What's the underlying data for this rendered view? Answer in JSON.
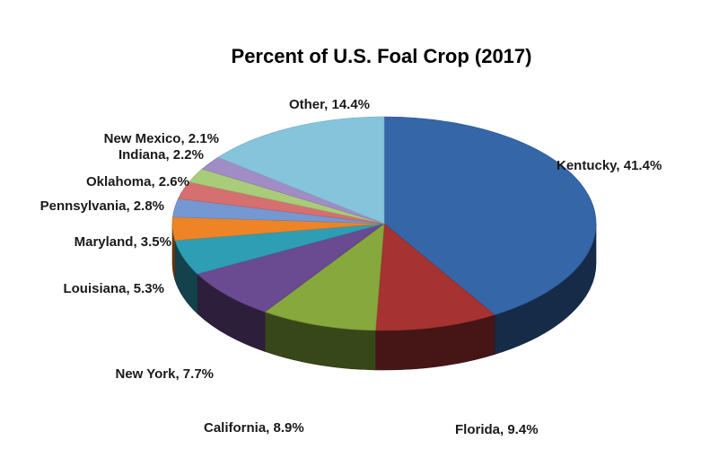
{
  "chart_data": {
    "type": "pie",
    "title": "Percent of U.S. Foal Crop (2017)",
    "style": "3d",
    "slices": [
      {
        "name": "Kentucky",
        "value": 41.4,
        "label": "Kentucky, 41.4%",
        "color": "#3466a8"
      },
      {
        "name": "Florida",
        "value": 9.4,
        "label": "Florida, 9.4%",
        "color": "#a63232"
      },
      {
        "name": "California",
        "value": 8.9,
        "label": "California, 8.9%",
        "color": "#86a83c"
      },
      {
        "name": "New York",
        "value": 7.7,
        "label": "New York, 7.7%",
        "color": "#6a4a90"
      },
      {
        "name": "Louisiana",
        "value": 5.3,
        "label": "Louisiana, 5.3%",
        "color": "#2e9eb4"
      },
      {
        "name": "Maryland",
        "value": 3.5,
        "label": "Maryland, 3.5%",
        "color": "#ee8425"
      },
      {
        "name": "Pennsylvania",
        "value": 2.8,
        "label": "Pennsylvania, 2.8%",
        "color": "#7597d2"
      },
      {
        "name": "Oklahoma",
        "value": 2.6,
        "label": "Oklahoma, 2.6%",
        "color": "#d66f6f"
      },
      {
        "name": "Indiana",
        "value": 2.2,
        "label": "Indiana, 2.2%",
        "color": "#a8cc7a"
      },
      {
        "name": "New Mexico",
        "value": 2.1,
        "label": "New Mexico, 2.1%",
        "color": "#a28cc6"
      },
      {
        "name": "Other",
        "value": 14.4,
        "label": "Other, 14.4%",
        "color": "#86c4dc"
      }
    ]
  }
}
